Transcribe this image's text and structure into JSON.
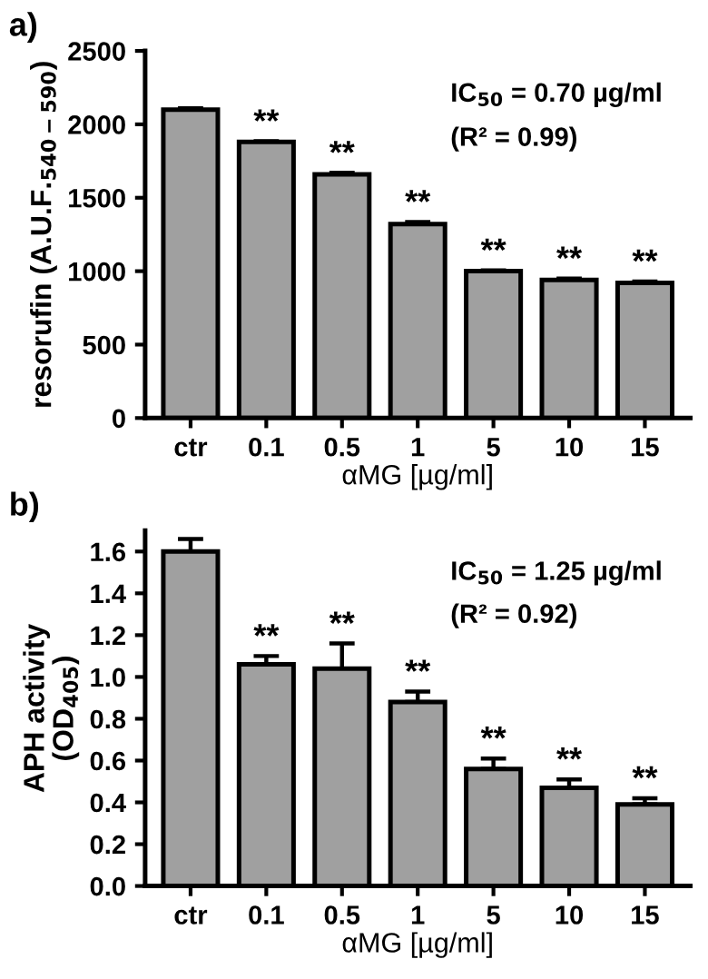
{
  "chart_data": [
    {
      "type": "bar",
      "title": "a)",
      "xlabel": "αMG [µg/ml]",
      "ylabel": "resorufin (A.U.F.$_{540−590}$)",
      "categories": [
        "ctr",
        "0.1",
        "0.5",
        "1",
        "5",
        "10",
        "15"
      ],
      "series": [
        {
          "color": "#a0a0a0",
          "values": [
            2100,
            1880,
            1660,
            1320,
            1000,
            940,
            920
          ],
          "errors": [
            [
              2100,
              2110
            ],
            [
              1880,
              1885
            ],
            [
              1660,
              1670
            ],
            [
              1320,
              1335
            ],
            [
              1000,
              1005
            ],
            [
              940,
              950
            ],
            [
              920,
              930
            ]
          ]
        }
      ],
      "ylim": [
        0,
        2500
      ],
      "yticks": [
        0,
        500,
        1000,
        1500,
        2000,
        2500
      ],
      "grid": false,
      "legend": false,
      "annotations": [
        {
          "text": "**",
          "x": "0.1",
          "y": 1885
        },
        {
          "text": "**",
          "x": "0.5",
          "y": 1670
        },
        {
          "text": "**",
          "x": "1",
          "y": 1335
        },
        {
          "text": "**",
          "x": "5",
          "y": 1005
        },
        {
          "text": "**",
          "x": "10",
          "y": 950
        },
        {
          "text": "**",
          "x": "15",
          "y": 930
        },
        "IC$_{50}$ = 0.70 µg/ml",
        "(R² = 0.99)"
      ]
    },
    {
      "type": "bar",
      "title": "b)",
      "xlabel": "αMG [µg/ml]",
      "ylabel": "APH activity\n(OD$_{405}$)",
      "categories": [
        "ctr",
        "0.1",
        "0.5",
        "1",
        "5",
        "10",
        "15"
      ],
      "series": [
        {
          "color": "#a0a0a0",
          "values": [
            1.6,
            1.06,
            1.04,
            0.88,
            0.56,
            0.47,
            0.39
          ],
          "errors": [
            [
              1.6,
              1.66
            ],
            [
              1.06,
              1.1
            ],
            [
              1.04,
              1.16
            ],
            [
              0.88,
              0.93
            ],
            [
              0.56,
              0.61
            ],
            [
              0.47,
              0.51
            ],
            [
              0.39,
              0.42
            ]
          ]
        }
      ],
      "ylim": [
        0,
        1.7
      ],
      "yticks": [
        {
          "value": 0,
          "label": "0.0"
        },
        0.2,
        0.4,
        0.6,
        0.8,
        {
          "value": 1.0,
          "label": "1.0"
        },
        1.2,
        1.4,
        1.6
      ],
      "grid": false,
      "legend": false,
      "annotations": [
        {
          "text": "**",
          "x": "0.1",
          "y": 1.1
        },
        {
          "text": "**",
          "x": "0.5",
          "y": 1.16
        },
        {
          "text": "**",
          "x": "1",
          "y": 0.93
        },
        {
          "text": "**",
          "x": "5",
          "y": 0.61
        },
        {
          "text": "**",
          "x": "10",
          "y": 0.51
        },
        {
          "text": "**",
          "x": "15",
          "y": 0.42
        },
        "IC$_{50}$ = 1.25 µg/ml",
        "(R² = 0.92)"
      ]
    }
  ]
}
